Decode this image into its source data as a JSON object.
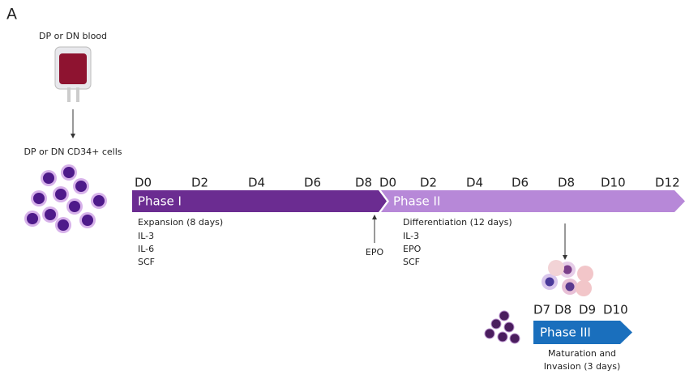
{
  "panel_label": "A",
  "source": {
    "label": "DP or DN blood"
  },
  "cells": {
    "label": "DP or DN CD34+ cells"
  },
  "phases": [
    {
      "label": "Phase I",
      "days": [
        "D0",
        "D2",
        "D4",
        "D6",
        "D8"
      ],
      "description": "Expansion (8 days)",
      "factors": [
        "IL-3",
        "IL-6",
        "SCF"
      ]
    },
    {
      "label": "Phase II",
      "days": [
        "D0",
        "D2",
        "D4",
        "D6",
        "D8",
        "D10",
        "D12"
      ],
      "description": "Differentiation (12 days)",
      "factors": [
        "IL-3",
        "EPO",
        "SCF"
      ]
    },
    {
      "label": "Phase III",
      "days": [
        "D7",
        "D8",
        "D9",
        "D10"
      ],
      "description": [
        "Maturation and",
        "Invasion (3 days)"
      ]
    }
  ],
  "epo": {
    "label": "EPO"
  }
}
